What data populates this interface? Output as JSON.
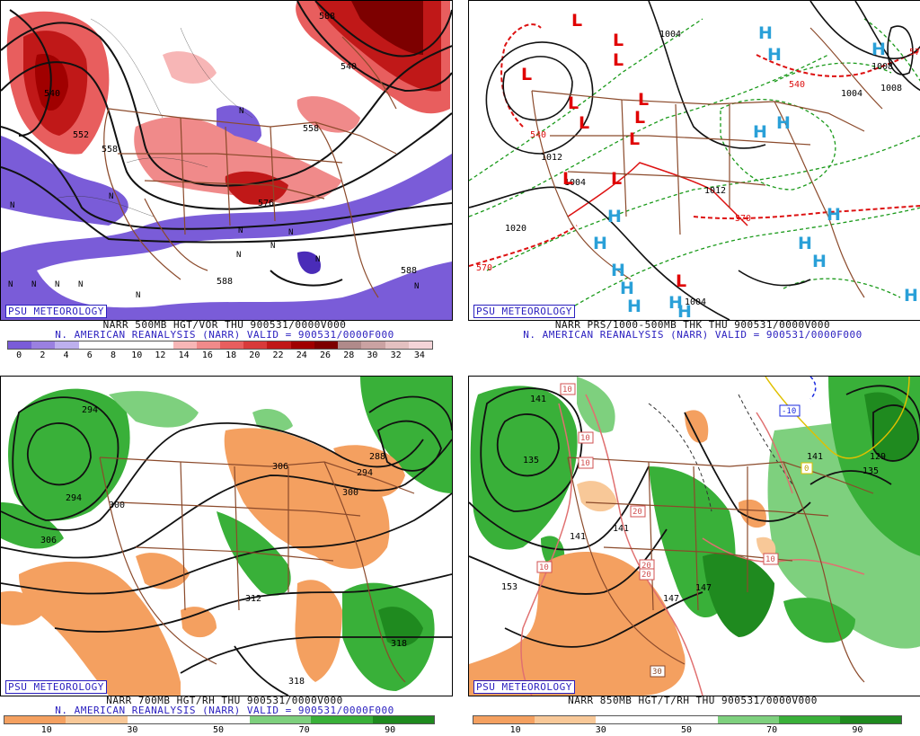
{
  "panels": [
    {
      "id": "p1",
      "badge": "PSU METEOROLOGY",
      "caption1": "NARR 500MB HGT/VOR THU 900531/0000V000",
      "caption2": "N. AMERICAN REANALYSIS (NARR) VALID = 900531/0000F000",
      "colorbar": {
        "ticks": [
          "0",
          "2",
          "4",
          "6",
          "8",
          "10",
          "12",
          "14",
          "16",
          "18",
          "20",
          "22",
          "24",
          "26",
          "28",
          "30",
          "32",
          "34"
        ],
        "colors": [
          "#7a5cd8",
          "#9a80e0",
          "#bdb0ee",
          "#fff",
          "#fff",
          "#fff",
          "#fff",
          "#f7b6b6",
          "#f08a8a",
          "#e85e5e",
          "#d83a3a",
          "#c01818",
          "#a00000",
          "#7d0000",
          "#b08a8a",
          "#caa2a2",
          "#e3c0c0",
          "#f4d4d8"
        ]
      },
      "contour_labels": [
        "540",
        "552",
        "558",
        "540",
        "588",
        "588",
        "576",
        "588",
        "558"
      ],
      "map_symbols": [
        "N",
        "N",
        "N",
        "N",
        "N",
        "N",
        "N",
        "N",
        "N",
        "N",
        "N",
        "N",
        "N",
        "N"
      ]
    },
    {
      "id": "p2",
      "badge": "PSU METEOROLOGY",
      "caption1": "NARR PRS/1000-500MB THK THU 900531/0000V000",
      "caption2": "N. AMERICAN REANALYSIS (NARR) VALID = 900531/0000F000",
      "contour_labels": [
        "1004",
        "1012",
        "1004",
        "1020",
        "1012",
        "1004",
        "1004",
        "1008",
        "1008",
        "570",
        "540",
        "570",
        "540",
        "570"
      ],
      "lows": [
        "L",
        "L",
        "L",
        "L",
        "L",
        "L",
        "L",
        "L",
        "L",
        "L",
        "L",
        "L"
      ],
      "highs": [
        "H",
        "H",
        "H",
        "H",
        "H",
        "H",
        "H",
        "H",
        "H",
        "H",
        "H",
        "H",
        "H",
        "H",
        "H",
        "H"
      ]
    },
    {
      "id": "p3",
      "badge": "PSU METEOROLOGY",
      "caption1": "NARR 700MB HGT/RH THU 900531/0000V000",
      "caption2": "N. AMERICAN REANALYSIS (NARR) VALID = 900531/0000F000",
      "colorbar": {
        "ticks": [
          "10",
          "30",
          "50",
          "70",
          "90"
        ],
        "colors": [
          "#f4a060",
          "#f8c898",
          "#fff",
          "#fff",
          "#7ed07e",
          "#39b039",
          "#1f8a1f"
        ]
      },
      "contour_labels": [
        "294",
        "294",
        "300",
        "306",
        "306",
        "288",
        "294",
        "300",
        "312",
        "318",
        "318"
      ]
    },
    {
      "id": "p4",
      "badge": "PSU METEOROLOGY",
      "caption1": "NARR 850MB HGT/T/RH THU 900531/0000V000",
      "caption2": "",
      "colorbar": {
        "ticks": [
          "10",
          "30",
          "50",
          "70",
          "90"
        ],
        "colors": [
          "#f4a060",
          "#f8c898",
          "#fff",
          "#fff",
          "#7ed07e",
          "#39b039",
          "#1f8a1f"
        ]
      },
      "contour_labels": [
        "141",
        "135",
        "141",
        "141",
        "147",
        "147",
        "153",
        "141",
        "135",
        "129"
      ],
      "temp_boxes": [
        "10",
        "10",
        "10",
        "10",
        "20",
        "20",
        "20",
        "10",
        "30",
        "-10",
        "0"
      ]
    }
  ],
  "colors": {
    "border": "#8b4a2b",
    "psu_blue": "#2a1fbf",
    "vort_low": "#7a5cd8",
    "vort_high": "#c01818",
    "dry": "#f4a060",
    "moist": "#39b039",
    "low_red": "#e00000",
    "high_blue": "#2aa0d8",
    "thick_red": "#dd1111",
    "thick_green": "#1a9a1a"
  }
}
